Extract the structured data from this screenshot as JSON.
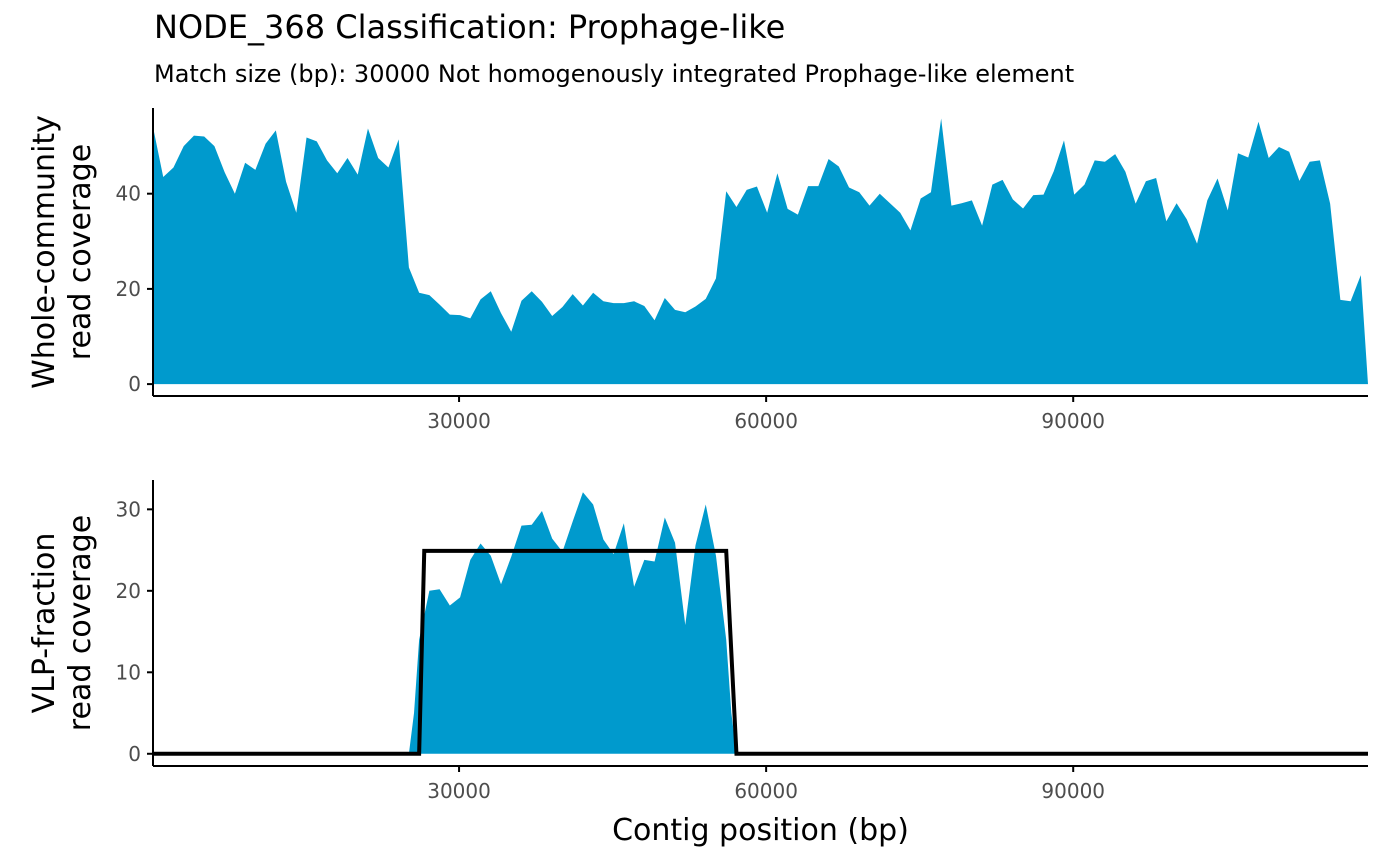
{
  "title": "NODE_368 Classification: Prophage-like",
  "subtitle": "Match size (bp): 30000 Not homogenously integrated Prophage-like element",
  "colors": {
    "area": "#009ACD",
    "line": "#000000",
    "axis": "#000000",
    "tick_text": "#4d4d4d"
  },
  "chart_data": [
    {
      "type": "area",
      "panel": "top",
      "ylabel": [
        "Whole-community",
        "read coverage"
      ],
      "xlabel": "",
      "xlim": [
        100,
        118800
      ],
      "ylim": [
        -2.5,
        58
      ],
      "x_ticks": [
        30000,
        60000,
        90000
      ],
      "x_tick_labels": [
        "30000",
        "60000",
        "90000"
      ],
      "y_ticks": [
        0,
        20,
        40
      ],
      "y_tick_labels": [
        "0",
        "20",
        "40"
      ],
      "grid": false,
      "series": [
        {
          "x": [
            100,
            1100,
            2100,
            3100,
            4100,
            5100,
            6100,
            7100,
            8100,
            9100,
            10100,
            11100,
            12100,
            13100,
            14100,
            15100,
            16100,
            17100,
            18100,
            19100,
            20100,
            21100,
            22100,
            23100,
            24100,
            25100,
            26100,
            27100,
            28100,
            29100,
            30100,
            31100,
            32100,
            33100,
            34100,
            35100,
            36100,
            37100,
            38100,
            39100,
            40100,
            41100,
            42100,
            43100,
            44100,
            45100,
            46100,
            47100,
            48100,
            49100,
            50100,
            51100,
            52100,
            53100,
            54100,
            55100,
            56100,
            57100,
            58100,
            59100,
            60100,
            61100,
            62100,
            63100,
            64100,
            65100,
            66100,
            67100,
            68100,
            69100,
            70100,
            71100,
            72100,
            73100,
            74100,
            75100,
            76100,
            77100,
            78100,
            79100,
            80100,
            81100,
            82100,
            83100,
            84100,
            85100,
            86100,
            87100,
            88100,
            89100,
            90100,
            91100,
            92100,
            93100,
            94100,
            95100,
            96100,
            97100,
            98100,
            99100,
            100100,
            101100,
            102100,
            103100,
            104100,
            105100,
            106100,
            107100,
            108100,
            109100,
            110100,
            111100,
            112100,
            113100,
            114100,
            115100,
            116100,
            117100,
            118100,
            118800
          ],
          "values": [
            54,
            43.5,
            45.5,
            50,
            52.2,
            52,
            50,
            44.5,
            40,
            46.5,
            45,
            50.5,
            53.3,
            42.5,
            36,
            51.8,
            51,
            47,
            44.3,
            47.5,
            44,
            53.7,
            47.5,
            45.5,
            51.4,
            24.5,
            19.2,
            18.7,
            16.7,
            14.6,
            14.5,
            13.8,
            17.8,
            19.5,
            14.9,
            11,
            17.5,
            19.5,
            17.3,
            14.3,
            16.2,
            18.9,
            16.5,
            19.2,
            17.4,
            17,
            17,
            17.4,
            16.4,
            13.4,
            18.1,
            15.6,
            15.1,
            16.3,
            17.9,
            22.2,
            40.5,
            37.2,
            40.8,
            41.5,
            36,
            44.3,
            36.8,
            35.6,
            41.6,
            41.6,
            47.3,
            45.7,
            41.3,
            40.3,
            37.5,
            40,
            38,
            36,
            32.3,
            39,
            40.3,
            55.8,
            37.5,
            38,
            38.6,
            33.3,
            41.9,
            42.9,
            38.8,
            36.9,
            39.7,
            39.8,
            44.7,
            51.2,
            39.8,
            41.9,
            47,
            46.7,
            48.3,
            44.6,
            37.9,
            42.6,
            43.3,
            34.2,
            38,
            34.6,
            29.5,
            38.6,
            43.2,
            36.5,
            48.5,
            47.6,
            55.1,
            47.5,
            49.8,
            48.8,
            42.7,
            46.7,
            47,
            37.9,
            17.7,
            17.4,
            22.9,
            0
          ]
        }
      ]
    },
    {
      "type": "area",
      "panel": "bottom",
      "ylabel": [
        "VLP-fraction",
        "read coverage"
      ],
      "xlabel": "Contig position (bp)",
      "xlim": [
        100,
        118800
      ],
      "ylim": [
        -1.5,
        33.6
      ],
      "x_ticks": [
        30000,
        60000,
        90000
      ],
      "x_tick_labels": [
        "30000",
        "60000",
        "90000"
      ],
      "y_ticks": [
        0,
        10,
        20,
        30
      ],
      "y_tick_labels": [
        "0",
        "10",
        "20",
        "30"
      ],
      "grid": false,
      "series": [
        {
          "x": [
            100,
            25100,
            25600,
            26100,
            27100,
            28100,
            29100,
            30100,
            31100,
            32100,
            33100,
            34100,
            35100,
            36100,
            37100,
            38100,
            39100,
            40100,
            41100,
            42100,
            43100,
            44100,
            45100,
            46100,
            47100,
            48100,
            49100,
            50100,
            51100,
            52100,
            53100,
            54100,
            55100,
            56100,
            56600,
            57100,
            118800
          ],
          "values": [
            0,
            0,
            5,
            14,
            20,
            20.2,
            18.2,
            19.2,
            23.8,
            25.8,
            24.3,
            20.8,
            24.2,
            28,
            28.1,
            29.8,
            26.4,
            24.8,
            28.5,
            32.1,
            30.6,
            26.3,
            24.5,
            28.3,
            20.5,
            23.8,
            23.6,
            29,
            25.9,
            15.8,
            25.6,
            30.6,
            24.3,
            14,
            5,
            0,
            0
          ]
        }
      ],
      "fit_line": {
        "x": [
          100,
          25100,
          26100,
          26600,
          56100,
          57100,
          118800
        ],
        "values": [
          0,
          0,
          0,
          24.9,
          24.9,
          0,
          0
        ]
      }
    }
  ]
}
